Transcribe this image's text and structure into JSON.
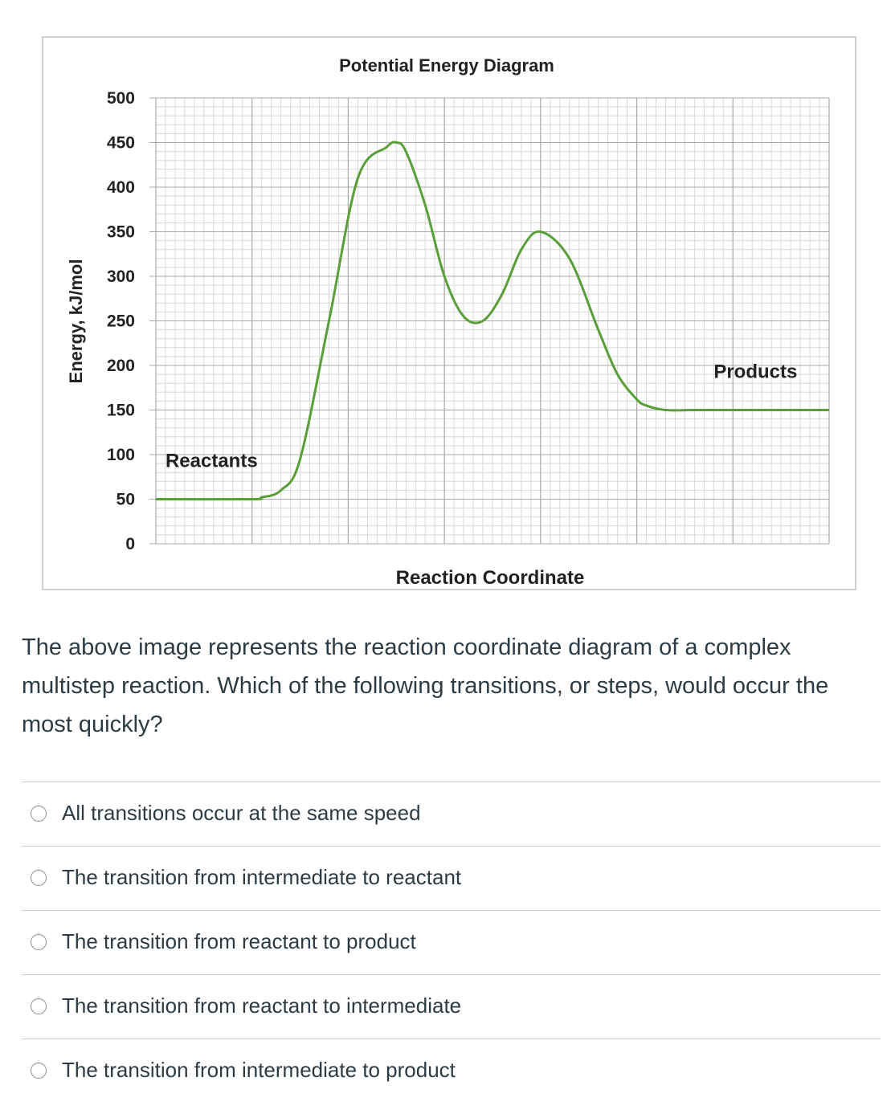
{
  "chart_data": {
    "type": "line",
    "title": "Potential Energy Diagram",
    "xlabel": "Reaction Coordinate",
    "ylabel": "Energy, kJ/mol",
    "ylim": [
      0,
      500
    ],
    "yticks": [
      0,
      50,
      100,
      150,
      200,
      250,
      300,
      350,
      400,
      450,
      500
    ],
    "grid": true,
    "x": [
      0,
      1.0,
      1.1,
      1.3,
      1.5,
      1.8,
      2.1,
      2.4,
      2.5,
      2.6,
      2.8,
      3.0,
      3.2,
      3.4,
      3.6,
      3.8,
      4.0,
      4.3,
      4.6,
      4.8,
      5.0,
      5.1,
      5.3,
      5.6,
      6.0,
      7.0
    ],
    "y": [
      50,
      50,
      52,
      60,
      95,
      250,
      410,
      445,
      450,
      440,
      380,
      300,
      255,
      250,
      280,
      330,
      350,
      320,
      240,
      190,
      162,
      155,
      150,
      150,
      150,
      150
    ],
    "xlim": [
      0,
      7
    ],
    "annotations": [
      {
        "text": "Reactants",
        "x": 0.1,
        "y": 86
      },
      {
        "text": "Products",
        "x": 5.8,
        "y": 186
      }
    ]
  },
  "question": {
    "text": "The above image represents the reaction coordinate diagram of a complex multistep reaction.  Which of the following transitions, or steps, would occur the most quickly?"
  },
  "answers": [
    {
      "label": "All transitions occur at the same speed"
    },
    {
      "label": "The transition from intermediate to reactant"
    },
    {
      "label": "The transition from reactant to product"
    },
    {
      "label": "The transition from reactant to intermediate"
    },
    {
      "label": "The transition from intermediate to product"
    }
  ],
  "colors": {
    "line": "#5a9e3a",
    "grid_major": "#aaaaaa",
    "grid_minor": "#d8d8d8",
    "text": "#2d3b45"
  }
}
